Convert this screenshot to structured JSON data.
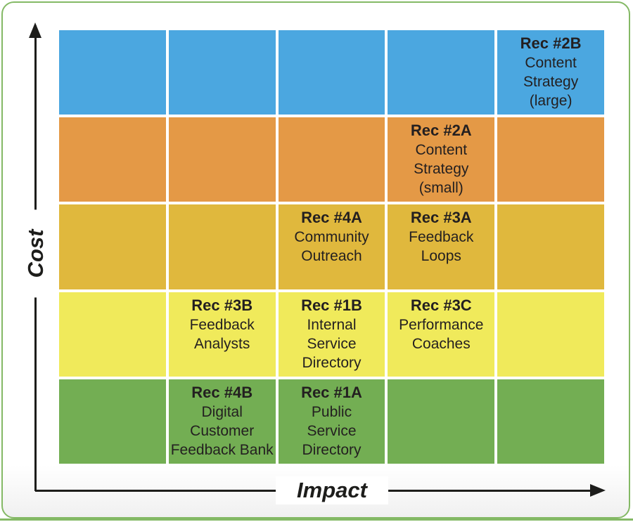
{
  "colors": {
    "card_border_green": "#84b965",
    "axis_black": "#1d1d1b",
    "cell_text": "#231f20",
    "grid_gap_white": "#ffffff"
  },
  "chart_data": {
    "type": "heatmap",
    "title": "",
    "xlabel": "Impact",
    "ylabel": "Cost",
    "grid": {
      "rows": 5,
      "cols": 5
    },
    "axis_note": "rows ordered top to bottom = highest cost to lowest cost; columns left to right = lowest impact to highest impact",
    "row_colors": [
      "#4ba7e0",
      "#e49946",
      "#e0b83d",
      "#f0ea5b",
      "#73ae53"
    ],
    "items": [
      {
        "row": 1,
        "col": 5,
        "title": "Rec #2B",
        "label": "Content Strategy (large)",
        "label_lines": [
          "Content",
          "Strategy",
          "(large)"
        ]
      },
      {
        "row": 2,
        "col": 4,
        "title": "Rec #2A",
        "label": "Content Strategy (small)",
        "label_lines": [
          "Content",
          "Strategy",
          "(small)"
        ]
      },
      {
        "row": 3,
        "col": 3,
        "title": "Rec #4A",
        "label": "Community Outreach",
        "label_lines": [
          "Community",
          "Outreach"
        ]
      },
      {
        "row": 3,
        "col": 4,
        "title": "Rec #3A",
        "label": "Feedback Loops",
        "label_lines": [
          "Feedback",
          "Loops"
        ]
      },
      {
        "row": 4,
        "col": 2,
        "title": "Rec #3B",
        "label": "Feedback Analysts",
        "label_lines": [
          "Feedback",
          "Analysts"
        ]
      },
      {
        "row": 4,
        "col": 3,
        "title": "Rec #1B",
        "label": "Internal Service Directory",
        "label_lines": [
          "Internal",
          "Service",
          "Directory"
        ]
      },
      {
        "row": 4,
        "col": 4,
        "title": "Rec #3C",
        "label": "Performance Coaches",
        "label_lines": [
          "Performance",
          "Coaches"
        ]
      },
      {
        "row": 5,
        "col": 2,
        "title": "Rec #4B",
        "label": "Digital Customer Feedback Bank",
        "label_lines": [
          "Digital",
          "Customer",
          "Feedback Bank"
        ]
      },
      {
        "row": 5,
        "col": 3,
        "title": "Rec #1A",
        "label": "Public Service Directory",
        "label_lines": [
          "Public",
          "Service",
          "Directory"
        ]
      }
    ]
  }
}
